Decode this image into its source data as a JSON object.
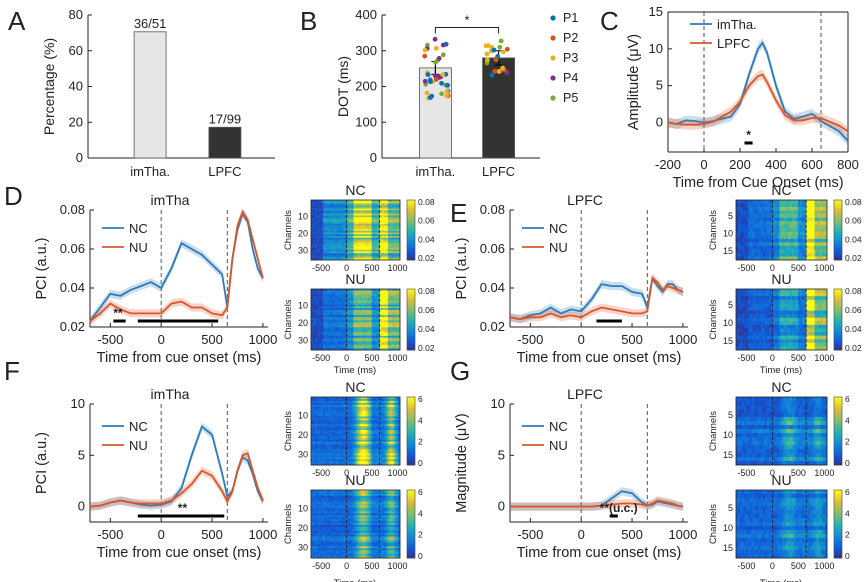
{
  "figure": {
    "panel_letters": [
      "A",
      "B",
      "C",
      "D",
      "E",
      "F",
      "G"
    ],
    "heatmap_ylabel": "Channels",
    "heatmap_xlabel": "Time (ms)",
    "colors": {
      "blue": "#2b7bba",
      "orange": "#d9572b",
      "light_bar": "#e6e6e6",
      "dark_bar": "#333333"
    }
  },
  "chart_data": [
    {
      "id": "A",
      "type": "bar",
      "categories": [
        "imTha.",
        "LPFC"
      ],
      "values": [
        70.6,
        17.2
      ],
      "data_labels": [
        "36/51",
        "17/99"
      ],
      "ylabel": "Percentage (%)",
      "ylim": [
        0,
        80
      ],
      "yticks": [
        0,
        20,
        40,
        60,
        80
      ]
    },
    {
      "id": "B",
      "type": "bar",
      "categories": [
        "imTha.",
        "LPFC"
      ],
      "values": [
        252,
        280
      ],
      "errors": [
        18,
        20
      ],
      "ylabel": "DOT (ms)",
      "ylim": [
        0,
        400
      ],
      "yticks": [
        0,
        100,
        200,
        300,
        400
      ],
      "significance": "*",
      "legend": [
        "P1",
        "P2",
        "P3",
        "P4",
        "P5"
      ],
      "legend_colors": [
        "#0072bd",
        "#d95319",
        "#edb120",
        "#7e2f8e",
        "#77ac30"
      ]
    },
    {
      "id": "C",
      "type": "line",
      "xlabel": "Time from Cue Onset (ms)",
      "ylabel": "Amplitude (μV)",
      "xlim": [
        -200,
        800
      ],
      "ylim": [
        -4,
        15
      ],
      "xticks": [
        -200,
        0,
        200,
        400,
        600,
        800
      ],
      "yticks": [
        0,
        5,
        10,
        15
      ],
      "vlines": [
        0,
        650
      ],
      "sig_bar": [
        225,
        270
      ],
      "sig_label": "*",
      "legend": [
        "imTha.",
        "LPFC"
      ],
      "x": [
        -200,
        -150,
        -100,
        -50,
        0,
        50,
        100,
        150,
        200,
        250,
        300,
        325,
        350,
        400,
        450,
        500,
        550,
        600,
        650,
        700,
        750,
        800
      ],
      "series": [
        {
          "name": "imTha.",
          "values": [
            0,
            -0.2,
            0.3,
            0.2,
            0,
            0.2,
            0.5,
            0.8,
            2.5,
            6.5,
            10,
            10.8,
            9.5,
            5,
            1.5,
            0.5,
            0.8,
            1.2,
            0.2,
            -0.5,
            -1.2,
            -2.5
          ]
        },
        {
          "name": "LPFC",
          "values": [
            0,
            -0.2,
            -0.3,
            -0.3,
            -0.2,
            0.1,
            0.8,
            1.5,
            2.8,
            5,
            6.3,
            6.5,
            5.5,
            3,
            1,
            0.3,
            0.3,
            0.6,
            0.6,
            0.1,
            -0.4,
            -1.2
          ]
        }
      ]
    },
    {
      "id": "D",
      "type": "line",
      "title": "imTha",
      "xlabel": "Time from cue onset (ms)",
      "ylabel": "PCI (a.u.)",
      "xlim": [
        -700,
        1050
      ],
      "ylim": [
        0.02,
        0.08
      ],
      "xticks": [
        -500,
        0,
        500,
        1000
      ],
      "yticks": [
        0.02,
        0.04,
        0.06,
        0.08
      ],
      "vlines": [
        0,
        650
      ],
      "sig_bars": [
        [
          -470,
          -350
        ],
        [
          -230,
          560
        ]
      ],
      "sig_label": "**",
      "legend": [
        "NC",
        "NU"
      ],
      "x": [
        -700,
        -600,
        -500,
        -400,
        -300,
        -200,
        -100,
        0,
        100,
        200,
        300,
        400,
        500,
        600,
        650,
        700,
        750,
        800,
        850,
        900,
        950,
        1000
      ],
      "series": [
        {
          "name": "NC",
          "values": [
            0.023,
            0.03,
            0.037,
            0.036,
            0.039,
            0.041,
            0.043,
            0.04,
            0.05,
            0.063,
            0.06,
            0.057,
            0.052,
            0.047,
            0.03,
            0.055,
            0.07,
            0.078,
            0.074,
            0.06,
            0.05,
            0.045
          ]
        },
        {
          "name": "NU",
          "values": [
            0.023,
            0.027,
            0.032,
            0.029,
            0.027,
            0.027,
            0.027,
            0.027,
            0.032,
            0.033,
            0.03,
            0.03,
            0.027,
            0.026,
            0.03,
            0.055,
            0.072,
            0.079,
            0.075,
            0.065,
            0.055,
            0.045
          ]
        }
      ]
    },
    {
      "id": "E",
      "type": "line",
      "title": "LPFC",
      "xlabel": "Time from cue onset (ms)",
      "ylabel": "PCI (a.u.)",
      "xlim": [
        -700,
        1050
      ],
      "ylim": [
        0.02,
        0.08
      ],
      "xticks": [
        -500,
        0,
        500,
        1000
      ],
      "yticks": [
        0.02,
        0.04,
        0.06,
        0.08
      ],
      "vlines": [
        0,
        650
      ],
      "sig_bars": [
        [
          150,
          400
        ]
      ],
      "legend": [
        "NC",
        "NU"
      ],
      "x": [
        -700,
        -600,
        -500,
        -400,
        -300,
        -200,
        -100,
        0,
        100,
        200,
        300,
        400,
        500,
        600,
        650,
        700,
        750,
        800,
        850,
        900,
        950,
        1000
      ],
      "series": [
        {
          "name": "NC",
          "values": [
            0.025,
            0.024,
            0.026,
            0.027,
            0.03,
            0.027,
            0.029,
            0.028,
            0.034,
            0.042,
            0.041,
            0.041,
            0.038,
            0.037,
            0.03,
            0.045,
            0.041,
            0.038,
            0.042,
            0.042,
            0.039,
            0.038
          ]
        },
        {
          "name": "NU",
          "values": [
            0.025,
            0.024,
            0.025,
            0.025,
            0.027,
            0.025,
            0.026,
            0.025,
            0.028,
            0.03,
            0.029,
            0.028,
            0.027,
            0.027,
            0.028,
            0.045,
            0.043,
            0.039,
            0.041,
            0.04,
            0.039,
            0.038
          ]
        }
      ]
    },
    {
      "id": "F",
      "type": "line",
      "title": "imTha",
      "xlabel": "Time from cue onset (ms)",
      "ylabel": "PCI (a.u.)",
      "xlim": [
        -700,
        1050
      ],
      "ylim": [
        -1.5,
        10
      ],
      "xticks": [
        -500,
        0,
        500,
        1000
      ],
      "yticks": [
        0,
        5,
        10
      ],
      "vlines": [
        0,
        650
      ],
      "sig_bars": [
        [
          -230,
          620
        ]
      ],
      "sig_label": "**",
      "legend": [
        "NC",
        "NU"
      ],
      "x": [
        -700,
        -600,
        -500,
        -400,
        -300,
        -200,
        -100,
        0,
        100,
        200,
        300,
        400,
        500,
        600,
        650,
        700,
        750,
        800,
        850,
        900,
        950,
        1000
      ],
      "series": [
        {
          "name": "NC",
          "values": [
            0,
            0.1,
            0.4,
            0.6,
            0.4,
            0.2,
            0.1,
            0.2,
            0.5,
            1.8,
            5,
            7.8,
            7,
            3.2,
            1,
            1.5,
            3.5,
            4.8,
            4.5,
            3.2,
            1.5,
            0.5
          ]
        },
        {
          "name": "NU",
          "values": [
            0,
            0.1,
            0.4,
            0.6,
            0.4,
            0.3,
            0.3,
            0.3,
            0.6,
            1.3,
            2.2,
            3.5,
            3,
            1.5,
            0.5,
            1.5,
            3.5,
            5,
            5.2,
            3.5,
            1.8,
            0.6
          ]
        }
      ]
    },
    {
      "id": "G",
      "type": "line",
      "title": "LPFC",
      "xlabel": "Time from cue onset (ms)",
      "ylabel": "Magnitude (μV)",
      "xlim": [
        -700,
        1050
      ],
      "ylim": [
        -1.5,
        10
      ],
      "xticks": [
        -500,
        0,
        500,
        1000
      ],
      "yticks": [
        0,
        5,
        10
      ],
      "vlines": [
        0,
        650
      ],
      "sig_bars": [
        [
          280,
          360
        ]
      ],
      "sig_label": "**(u.c.)",
      "legend": [
        "NC",
        "NU"
      ],
      "x": [
        -700,
        -600,
        -500,
        -400,
        -300,
        -200,
        -100,
        0,
        100,
        200,
        300,
        400,
        500,
        600,
        650,
        700,
        750,
        800,
        850,
        900,
        950,
        1000
      ],
      "series": [
        {
          "name": "NC",
          "values": [
            0,
            0,
            0,
            0,
            0,
            0,
            0,
            0,
            0,
            0.1,
            0.8,
            1.5,
            1.3,
            0.4,
            0.1,
            0.2,
            0.5,
            0.4,
            0.3,
            0.2,
            0.1,
            0
          ]
        },
        {
          "name": "NU",
          "values": [
            0,
            0,
            0,
            0,
            0,
            0,
            0,
            0,
            0,
            0.1,
            0.2,
            0.3,
            0.3,
            0.2,
            0.1,
            0.3,
            0.6,
            0.5,
            0.4,
            0.3,
            0.1,
            0
          ]
        }
      ]
    },
    {
      "id": "D-NC",
      "type": "heatmap",
      "title": "NC",
      "channels": 35,
      "yticks": [
        10,
        20,
        30
      ],
      "xticks": [
        -500,
        0,
        500,
        1000
      ],
      "clim": [
        0.02,
        0.08
      ],
      "cticks": [
        "0.08",
        "0.06",
        "0.04",
        "0.02"
      ]
    },
    {
      "id": "D-NU",
      "type": "heatmap",
      "title": "NU",
      "channels": 35,
      "yticks": [
        10,
        20,
        30
      ],
      "xticks": [
        -500,
        0,
        500,
        1000
      ],
      "clim": [
        0.02,
        0.08
      ],
      "cticks": [
        "0.08",
        "0.06",
        "0.04",
        "0.02"
      ]
    },
    {
      "id": "E-NC",
      "type": "heatmap",
      "title": "NC",
      "channels": 17,
      "yticks": [
        5,
        10,
        15
      ],
      "xticks": [
        -500,
        0,
        500,
        1000
      ],
      "clim": [
        0.02,
        0.08
      ],
      "cticks": [
        "0.08",
        "0.06",
        "0.04",
        "0.02"
      ]
    },
    {
      "id": "E-NU",
      "type": "heatmap",
      "title": "NU",
      "channels": 17,
      "yticks": [
        5,
        10,
        15
      ],
      "xticks": [
        -500,
        0,
        500,
        1000
      ],
      "clim": [
        0.02,
        0.08
      ],
      "cticks": [
        "0.08",
        "0.06",
        "0.04",
        "0.02"
      ]
    },
    {
      "id": "F-NC",
      "type": "heatmap",
      "title": "NC",
      "channels": 35,
      "yticks": [
        10,
        20,
        30
      ],
      "xticks": [
        -500,
        0,
        500,
        1000
      ],
      "clim": [
        0,
        7
      ],
      "cticks": [
        "6",
        "4",
        "2",
        "0"
      ]
    },
    {
      "id": "F-NU",
      "type": "heatmap",
      "title": "NU",
      "channels": 35,
      "yticks": [
        10,
        20,
        30
      ],
      "xticks": [
        -500,
        0,
        500,
        1000
      ],
      "clim": [
        0,
        7
      ],
      "cticks": [
        "6",
        "4",
        "2",
        "0"
      ]
    },
    {
      "id": "G-NC",
      "type": "heatmap",
      "title": "NC",
      "channels": 17,
      "yticks": [
        5,
        10,
        15
      ],
      "xticks": [
        -500,
        0,
        500,
        1000
      ],
      "clim": [
        0,
        7
      ],
      "cticks": [
        "6",
        "4",
        "2",
        "0"
      ]
    },
    {
      "id": "G-NU",
      "type": "heatmap",
      "title": "NU",
      "channels": 17,
      "yticks": [
        5,
        10,
        15
      ],
      "xticks": [
        -500,
        0,
        500,
        1000
      ],
      "clim": [
        0,
        7
      ],
      "cticks": [
        "6",
        "4",
        "2",
        "0"
      ]
    }
  ]
}
